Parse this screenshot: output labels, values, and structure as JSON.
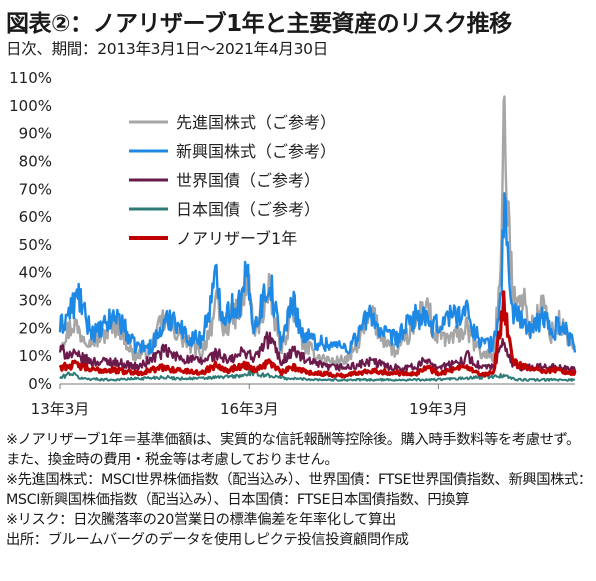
{
  "title": "図表②：ノアリザーブ1年と主要資産のリスク推移",
  "subtitle": "日次、期間：2013年3月1日～2021年4月30日",
  "notes": [
    "※ノアリザーブ1年＝基準価額は、実質的な信託報酬等控除後。購入時手数料等を考慮せず。また、換金時の費用・税金等は考慮しておりません。",
    "※先進国株式：MSCI世界株価指数（配当込み）、世界国債：FTSE世界国債指数、新興国株式：MSCI新興国株価指数（配当込み）、日本国債：FTSE日本国債指数、円換算",
    "※リスク：日次騰落率の20営業日の標準偏差を年率化して算出",
    "出所：ブルームバーグのデータを使用しピクテ投信投資顧問作成"
  ],
  "chart_data": {
    "type": "line",
    "x_range": [
      "2013-03-01",
      "2021-04-30"
    ],
    "x_ticks": [
      {
        "date": "2013-03-01",
        "label": "13年3月"
      },
      {
        "date": "2016-03-01",
        "label": "16年3月"
      },
      {
        "date": "2019-03-01",
        "label": "19年3月"
      }
    ],
    "y_ticks": [
      "0%",
      "10%",
      "20%",
      "30%",
      "40%",
      "50%",
      "60%",
      "70%",
      "80%",
      "90%",
      "100%",
      "110%"
    ],
    "ylim": [
      0,
      110
    ],
    "grid": false,
    "legend_position": "top-left",
    "series": [
      {
        "name": "先進国株式（ご参考）",
        "color": "#a6a6a6",
        "points": [
          [
            "2013-03-01",
            15
          ],
          [
            "2013-05-20",
            22
          ],
          [
            "2013-07-01",
            18
          ],
          [
            "2013-10-01",
            16
          ],
          [
            "2014-02-01",
            22
          ],
          [
            "2014-05-01",
            10
          ],
          [
            "2014-08-01",
            12
          ],
          [
            "2014-10-20",
            23
          ],
          [
            "2014-12-20",
            20
          ],
          [
            "2015-03-01",
            15
          ],
          [
            "2015-06-01",
            11
          ],
          [
            "2015-08-26",
            28
          ],
          [
            "2015-10-01",
            20
          ],
          [
            "2016-01-20",
            28
          ],
          [
            "2016-02-20",
            38
          ],
          [
            "2016-04-01",
            18
          ],
          [
            "2016-06-26",
            33
          ],
          [
            "2016-09-01",
            12
          ],
          [
            "2016-11-12",
            28
          ],
          [
            "2017-01-01",
            15
          ],
          [
            "2017-04-01",
            10
          ],
          [
            "2017-07-01",
            8
          ],
          [
            "2017-10-01",
            9
          ],
          [
            "2018-02-08",
            25
          ],
          [
            "2018-04-01",
            18
          ],
          [
            "2018-07-01",
            11
          ],
          [
            "2018-10-25",
            22
          ],
          [
            "2018-12-26",
            30
          ],
          [
            "2019-02-01",
            18
          ],
          [
            "2019-05-15",
            16
          ],
          [
            "2019-08-10",
            20
          ],
          [
            "2019-11-01",
            11
          ],
          [
            "2020-01-15",
            10
          ],
          [
            "2020-02-25",
            40
          ],
          [
            "2020-03-18",
            96
          ],
          [
            "2020-04-10",
            55
          ],
          [
            "2020-05-10",
            30
          ],
          [
            "2020-06-15",
            35
          ],
          [
            "2020-08-15",
            20
          ],
          [
            "2020-10-30",
            28
          ],
          [
            "2020-12-15",
            18
          ],
          [
            "2021-02-01",
            22
          ],
          [
            "2021-04-30",
            12
          ]
        ]
      },
      {
        "name": "新興国株式（ご参考）",
        "color": "#1e88e5",
        "points": [
          [
            "2013-03-01",
            20
          ],
          [
            "2013-06-20",
            32
          ],
          [
            "2013-08-01",
            22
          ],
          [
            "2013-10-01",
            18
          ],
          [
            "2014-01-25",
            25
          ],
          [
            "2014-05-01",
            14
          ],
          [
            "2014-08-01",
            13
          ],
          [
            "2014-10-15",
            20
          ],
          [
            "2014-12-15",
            25
          ],
          [
            "2015-03-01",
            17
          ],
          [
            "2015-06-01",
            16
          ],
          [
            "2015-08-24",
            38
          ],
          [
            "2015-10-01",
            25
          ],
          [
            "2016-01-20",
            30
          ],
          [
            "2016-02-15",
            40
          ],
          [
            "2016-04-01",
            20
          ],
          [
            "2016-06-26",
            38
          ],
          [
            "2016-09-01",
            15
          ],
          [
            "2016-11-12",
            30
          ],
          [
            "2017-01-01",
            18
          ],
          [
            "2017-04-01",
            15
          ],
          [
            "2017-07-01",
            14
          ],
          [
            "2017-10-01",
            13
          ],
          [
            "2018-02-08",
            26
          ],
          [
            "2018-04-01",
            18
          ],
          [
            "2018-07-01",
            16
          ],
          [
            "2018-10-25",
            25
          ],
          [
            "2018-12-26",
            22
          ],
          [
            "2019-02-01",
            20
          ],
          [
            "2019-05-15",
            25
          ],
          [
            "2019-08-10",
            26
          ],
          [
            "2019-11-01",
            15
          ],
          [
            "2020-01-15",
            14
          ],
          [
            "2020-02-25",
            30
          ],
          [
            "2020-03-18",
            67
          ],
          [
            "2020-04-10",
            40
          ],
          [
            "2020-05-10",
            25
          ],
          [
            "2020-06-15",
            25
          ],
          [
            "2020-08-15",
            18
          ],
          [
            "2020-10-30",
            25
          ],
          [
            "2020-12-15",
            18
          ],
          [
            "2021-02-01",
            22
          ],
          [
            "2021-04-30",
            14
          ]
        ]
      },
      {
        "name": "世界国債（ご参考）",
        "color": "#6b1a4c",
        "points": [
          [
            "2013-03-01",
            12
          ],
          [
            "2013-06-01",
            10
          ],
          [
            "2013-09-01",
            8
          ],
          [
            "2014-01-01",
            8
          ],
          [
            "2014-06-01",
            6
          ],
          [
            "2014-10-25",
            12
          ],
          [
            "2014-12-25",
            10
          ],
          [
            "2015-03-01",
            9
          ],
          [
            "2015-06-01",
            8
          ],
          [
            "2015-08-26",
            11
          ],
          [
            "2015-11-01",
            8
          ],
          [
            "2016-02-10",
            12
          ],
          [
            "2016-04-01",
            9
          ],
          [
            "2016-06-28",
            17
          ],
          [
            "2016-09-01",
            8
          ],
          [
            "2016-11-12",
            12
          ],
          [
            "2017-02-01",
            8
          ],
          [
            "2017-06-01",
            6
          ],
          [
            "2017-10-01",
            6
          ],
          [
            "2018-02-08",
            8
          ],
          [
            "2018-06-01",
            6
          ],
          [
            "2018-10-25",
            6
          ],
          [
            "2018-12-26",
            9
          ],
          [
            "2019-03-01",
            6
          ],
          [
            "2019-06-01",
            7
          ],
          [
            "2019-08-15",
            10
          ],
          [
            "2019-11-01",
            6
          ],
          [
            "2020-01-15",
            6
          ],
          [
            "2020-03-18",
            15
          ],
          [
            "2020-04-20",
            8
          ],
          [
            "2020-07-01",
            6
          ],
          [
            "2020-10-01",
            6
          ],
          [
            "2021-01-01",
            6
          ],
          [
            "2021-04-30",
            5
          ]
        ]
      },
      {
        "name": "日本国債（ご参考）",
        "color": "#2e7b78",
        "points": [
          [
            "2013-03-01",
            2
          ],
          [
            "2013-05-01",
            4
          ],
          [
            "2013-07-01",
            2
          ],
          [
            "2014-01-01",
            1.5
          ],
          [
            "2014-10-31",
            2.5
          ],
          [
            "2015-01-01",
            2
          ],
          [
            "2015-06-01",
            2
          ],
          [
            "2016-01-29",
            3
          ],
          [
            "2016-03-01",
            4
          ],
          [
            "2016-07-01",
            3
          ],
          [
            "2016-10-01",
            2
          ],
          [
            "2017-06-01",
            1.5
          ],
          [
            "2018-06-01",
            1.5
          ],
          [
            "2019-01-01",
            1.5
          ],
          [
            "2019-08-01",
            2
          ],
          [
            "2020-03-18",
            3
          ],
          [
            "2020-06-01",
            1.5
          ],
          [
            "2021-01-01",
            1.5
          ],
          [
            "2021-04-30",
            1.5
          ]
        ]
      },
      {
        "name": "ノアリザーブ1年",
        "color": "#c00000",
        "points": [
          [
            "2013-03-01",
            6
          ],
          [
            "2013-06-01",
            7
          ],
          [
            "2013-09-01",
            5
          ],
          [
            "2014-01-01",
            5
          ],
          [
            "2014-06-01",
            4
          ],
          [
            "2014-10-25",
            6
          ],
          [
            "2015-01-01",
            5
          ],
          [
            "2015-06-01",
            4
          ],
          [
            "2015-08-26",
            7
          ],
          [
            "2015-11-01",
            5
          ],
          [
            "2016-02-10",
            7
          ],
          [
            "2016-04-01",
            5
          ],
          [
            "2016-06-28",
            8
          ],
          [
            "2016-09-01",
            4
          ],
          [
            "2016-11-12",
            6
          ],
          [
            "2017-03-01",
            4
          ],
          [
            "2017-09-01",
            3
          ],
          [
            "2018-02-08",
            5
          ],
          [
            "2018-06-01",
            4
          ],
          [
            "2018-10-25",
            4
          ],
          [
            "2018-12-26",
            6
          ],
          [
            "2019-03-01",
            4
          ],
          [
            "2019-08-15",
            6
          ],
          [
            "2019-11-01",
            3
          ],
          [
            "2020-01-15",
            4
          ],
          [
            "2020-03-18",
            30
          ],
          [
            "2020-04-10",
            15
          ],
          [
            "2020-05-15",
            8
          ],
          [
            "2020-07-01",
            6
          ],
          [
            "2020-10-01",
            5
          ],
          [
            "2021-01-01",
            5
          ],
          [
            "2021-04-30",
            4
          ]
        ]
      }
    ]
  }
}
